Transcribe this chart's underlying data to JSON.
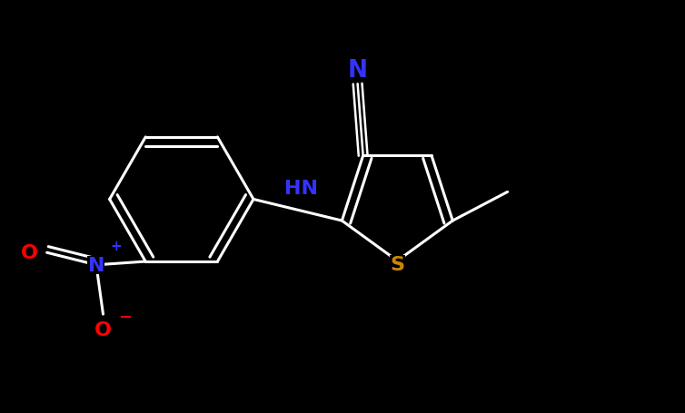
{
  "background_color": "#000000",
  "bond_color": "#ffffff",
  "bond_width": 2.2,
  "atom_colors": {
    "N_nitrile": "#3333ff",
    "N_nitro": "#3333ff",
    "N_amino": "#3333ff",
    "O": "#ff0000",
    "S": "#cc8800",
    "C": "#ffffff"
  },
  "font_size_atoms": 16,
  "figsize": [
    7.54,
    4.56
  ],
  "xlim": [
    0,
    10
  ],
  "ylim": [
    0,
    6
  ]
}
